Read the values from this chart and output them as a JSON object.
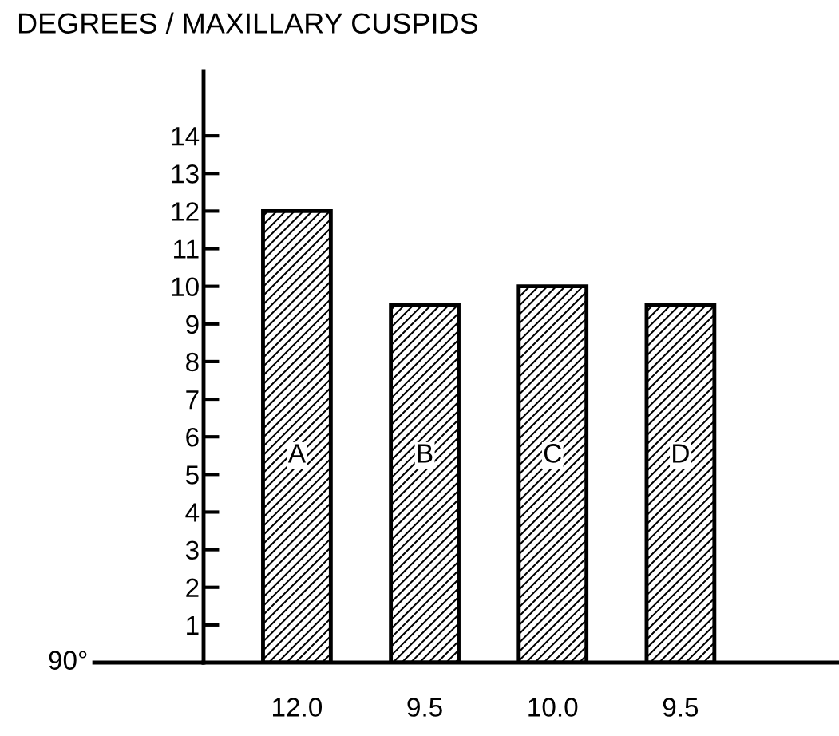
{
  "chart_data": {
    "type": "bar",
    "title": "DEGREES / MAXILLARY CUSPIDS",
    "categories": [
      "A",
      "B",
      "C",
      "D"
    ],
    "values": [
      12.0,
      9.5,
      10.0,
      9.5
    ],
    "value_labels": [
      "12.0",
      "9.5",
      "10.0",
      "9.5"
    ],
    "color": "#000000",
    "annotations": [
      "90°"
    ],
    "ylim": [
      0,
      15.7
    ],
    "yticks": [
      1,
      2,
      3,
      4,
      5,
      6,
      7,
      8,
      9,
      10,
      11,
      12,
      13,
      14
    ],
    "grid": false,
    "legend": false
  }
}
